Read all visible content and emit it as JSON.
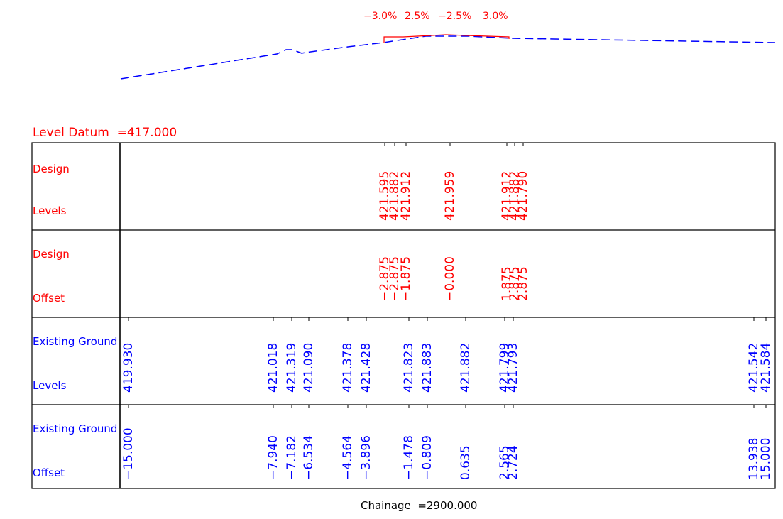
{
  "colors": {
    "design": "#ff0000",
    "existing": "#0000ff",
    "frame": "#000000",
    "background": "#ffffff"
  },
  "grades": [
    "−3.0%",
    "2.5%",
    "−2.5%",
    "3.0%"
  ],
  "level_datum": "Level Datum  =417.000",
  "chainage": "Chainage  =2900.000",
  "rows": {
    "design_levels": {
      "line1": "Design",
      "line2": "Levels"
    },
    "design_offset": {
      "line1": "Design",
      "line2": "Offset"
    },
    "existing_levels": {
      "line1": "Existing Ground",
      "line2": "Levels"
    },
    "existing_offset": {
      "line1": "Existing Ground",
      "line2": "Offset"
    }
  },
  "design_points": [
    {
      "offset": "−2.875",
      "level": "421.595"
    },
    {
      "offset": "−2.875",
      "level": "421.882"
    },
    {
      "offset": "−1.875",
      "level": "421.912"
    },
    {
      "offset": "−0.000",
      "level": "421.959"
    },
    {
      "offset": "1.875",
      "level": "421.912"
    },
    {
      "offset": "2.875",
      "level": "421.882"
    },
    {
      "offset": "2.875",
      "level": "421.790"
    }
  ],
  "existing_points": [
    {
      "offset": "−15.000",
      "level": "419.930"
    },
    {
      "offset": "−7.940",
      "level": "421.018"
    },
    {
      "offset": "−7.182",
      "level": "421.319"
    },
    {
      "offset": "−6.534",
      "level": "421.090"
    },
    {
      "offset": "−4.564",
      "level": "421.378"
    },
    {
      "offset": "−3.896",
      "level": "421.428"
    },
    {
      "offset": "−1.478",
      "level": "421.823"
    },
    {
      "offset": "−0.809",
      "level": "421.883"
    },
    {
      "offset": "0.635",
      "level": "421.882"
    },
    {
      "offset": "2.565",
      "level": "421.799"
    },
    {
      "offset": "2.724",
      "level": "421.793"
    },
    {
      "offset": "13.938",
      "level": "421.542"
    },
    {
      "offset": "15.000",
      "level": "421.584"
    }
  ]
}
